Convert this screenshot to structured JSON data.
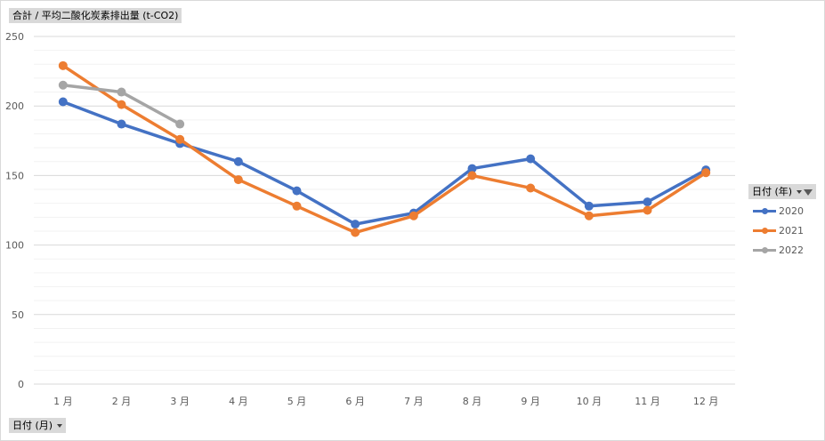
{
  "fields": {
    "value_field": "合計 / 平均二酸化炭素排出量 (t-CO2)",
    "axis_field": "日付 (月)",
    "legend_field": "日付 (年)"
  },
  "chart_data": {
    "type": "line",
    "title": "",
    "xlabel": "",
    "ylabel": "",
    "categories": [
      "1 月",
      "2 月",
      "3 月",
      "4 月",
      "5 月",
      "6 月",
      "7 月",
      "8 月",
      "9 月",
      "10 月",
      "11 月",
      "12 月"
    ],
    "ylim": [
      0,
      250
    ],
    "yticks": [
      0,
      50,
      100,
      150,
      200,
      250
    ],
    "grid": true,
    "legend_position": "right",
    "series": [
      {
        "name": "2020",
        "color": "#4472c4",
        "values": [
          203,
          187,
          173,
          160,
          139,
          115,
          123,
          155,
          162,
          128,
          131,
          154
        ]
      },
      {
        "name": "2021",
        "color": "#ed7d31",
        "values": [
          229,
          201,
          176,
          147,
          128,
          109,
          121,
          150,
          141,
          121,
          125,
          152
        ]
      },
      {
        "name": "2022",
        "color": "#a5a5a5",
        "values": [
          215,
          210,
          187,
          null,
          null,
          null,
          null,
          null,
          null,
          null,
          null,
          null
        ]
      }
    ]
  }
}
